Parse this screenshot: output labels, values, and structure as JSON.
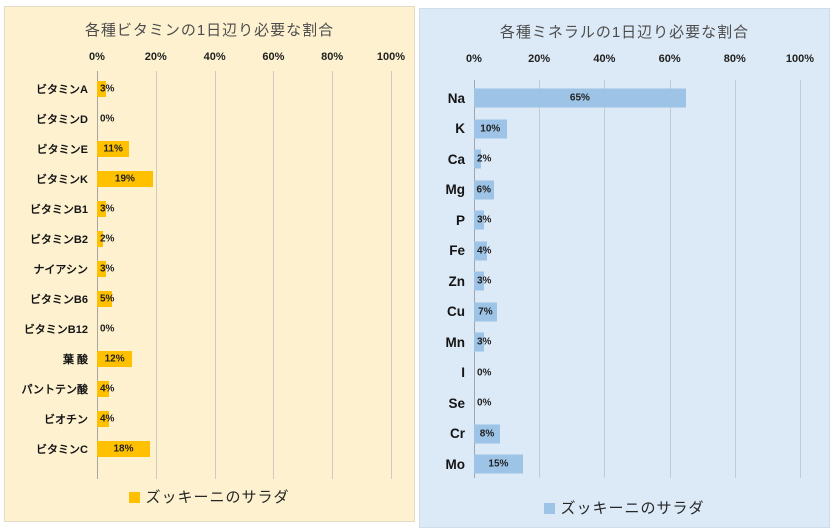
{
  "page": {
    "background": "#FFFFFF"
  },
  "chart_data": [
    {
      "type": "bar",
      "orientation": "horizontal",
      "title": "各種ビタミンの1日辺り必要な割合",
      "categories": [
        "ビタミンA",
        "ビタミンD",
        "ビタミンE",
        "ビタミンK",
        "ビタミンB1",
        "ビタミンB2",
        "ナイアシン",
        "ビタミンB6",
        "ビタミンB12",
        "葉 酸",
        "パントテン酸",
        "ビオチン",
        "ビタミンC"
      ],
      "values": [
        3,
        0,
        11,
        19,
        3,
        2,
        3,
        5,
        0,
        12,
        4,
        4,
        18
      ],
      "value_labels": [
        "3%",
        "0%",
        "11%",
        "19%",
        "3%",
        "2%",
        "3%",
        "5%",
        "0%",
        "12%",
        "4%",
        "4%",
        "18%"
      ],
      "xlim": [
        0,
        100
      ],
      "x_ticks": [
        "0%",
        "20%",
        "40%",
        "60%",
        "80%",
        "100%"
      ],
      "grid": true,
      "legend": "ズッキーニのサラダ",
      "legend_position": "bottom",
      "series_name": "ズッキーニのサラダ",
      "bar_color": "#FFC000",
      "panel_bg": "#FDF1CF",
      "grid_color": "#CFCCBE",
      "axis_color": "#A8A79E"
    },
    {
      "type": "bar",
      "orientation": "horizontal",
      "title": "各種ミネラルの1日辺り必要な割合",
      "categories": [
        "Na",
        "K",
        "Ca",
        "Mg",
        "P",
        "Fe",
        "Zn",
        "Cu",
        "Mn",
        "I",
        "Se",
        "Cr",
        "Mo"
      ],
      "values": [
        65,
        10,
        2,
        6,
        3,
        4,
        3,
        7,
        3,
        0,
        0,
        8,
        15
      ],
      "value_labels": [
        "65%",
        "10%",
        "2%",
        "6%",
        "3%",
        "4%",
        "3%",
        "7%",
        "3%",
        "0%",
        "0%",
        "8%",
        "15%"
      ],
      "xlim": [
        0,
        100
      ],
      "x_ticks": [
        "0%",
        "20%",
        "40%",
        "60%",
        "80%",
        "100%"
      ],
      "grid": true,
      "legend": "ズッキーニのサラダ",
      "legend_position": "bottom",
      "series_name": "ズッキーニのサラダ",
      "bar_color": "#9DC3E6",
      "panel_bg": "#DCE9F6",
      "grid_color": "#C2CAD4",
      "axis_color": "#9FA6AE"
    }
  ]
}
